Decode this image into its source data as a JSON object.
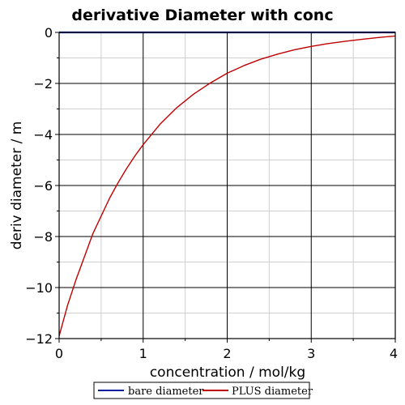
{
  "chart_data": {
    "type": "line",
    "title": "derivative Diameter with conc",
    "xlabel": "concentration / mol/kg",
    "ylabel": "deriv diameter / m",
    "xlim": [
      0,
      4
    ],
    "ylim": [
      -12,
      0
    ],
    "x_ticks": [
      0,
      1,
      2,
      3,
      4
    ],
    "x_tick_labels": [
      "0",
      "1",
      "2",
      "3",
      "4"
    ],
    "y_ticks": [
      0,
      -2,
      -4,
      -6,
      -8,
      -10,
      -12
    ],
    "y_tick_labels": [
      "0",
      "−2",
      "−4",
      "−6",
      "−8",
      "−10",
      "−12"
    ],
    "grid": true,
    "legend_position": "bottom-center",
    "series": [
      {
        "name": "bare diameter",
        "color": "#0a1f9e",
        "x": [
          0,
          0.5,
          1,
          1.5,
          2,
          2.5,
          3,
          3.5,
          4
        ],
        "values": [
          0,
          0,
          0,
          0,
          0,
          0,
          0,
          0,
          0
        ]
      },
      {
        "name": "PLUS diameter",
        "color": "#c00000",
        "x": [
          0,
          0.1,
          0.2,
          0.3,
          0.4,
          0.5,
          0.6,
          0.7,
          0.8,
          0.9,
          1.0,
          1.2,
          1.4,
          1.6,
          1.8,
          2.0,
          2.2,
          2.4,
          2.6,
          2.8,
          3.0,
          3.2,
          3.4,
          3.6,
          3.8,
          4.0
        ],
        "values": [
          -11.9,
          -10.7,
          -9.7,
          -8.8,
          -7.9,
          -7.2,
          -6.5,
          -5.9,
          -5.35,
          -4.85,
          -4.4,
          -3.6,
          -2.95,
          -2.42,
          -1.98,
          -1.6,
          -1.3,
          -1.05,
          -0.85,
          -0.68,
          -0.55,
          -0.44,
          -0.35,
          -0.27,
          -0.2,
          -0.14
        ]
      }
    ]
  }
}
